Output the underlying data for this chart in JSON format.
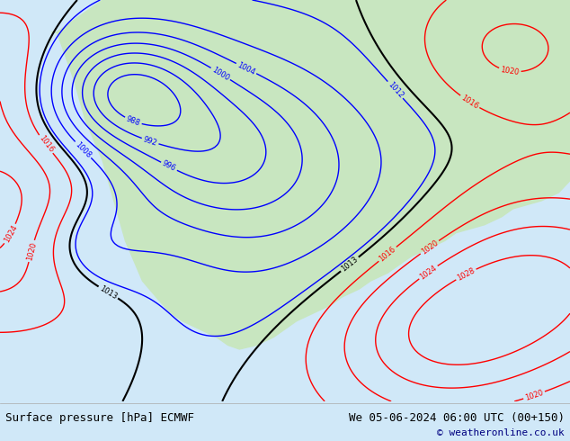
{
  "title_left": "Surface pressure [hPa] ECMWF",
  "title_right": "We 05-06-2024 06:00 UTC (00+150)",
  "copyright": "© weatheronline.co.uk",
  "bg_color": "#d0e8f8",
  "land_color": "#c8e6c0",
  "figure_width": 6.34,
  "figure_height": 4.9,
  "dpi": 100,
  "bottom_bar_color": "#e8e8e8",
  "bottom_text_color": "#000000",
  "copyright_color": "#000080",
  "title_fontsize": 9,
  "copyright_fontsize": 8
}
